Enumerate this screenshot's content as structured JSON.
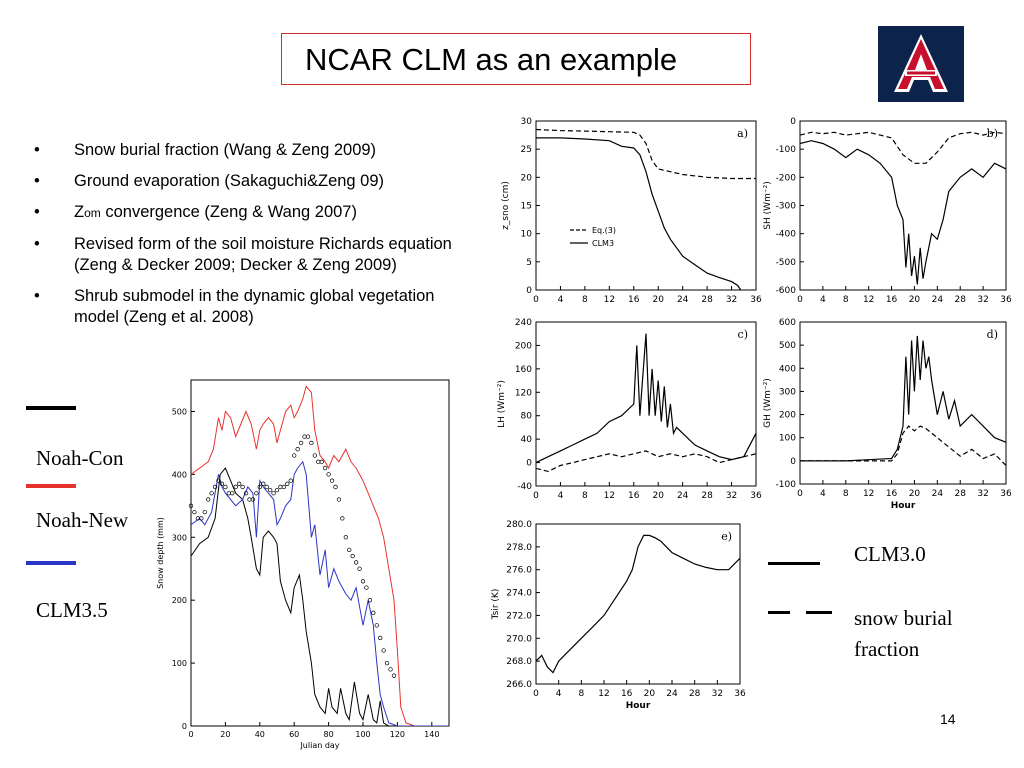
{
  "slide": {
    "title": "NCAR CLM as an example",
    "page_number": "14"
  },
  "logo": {
    "icon": "university-of-arizona-logo",
    "colors": {
      "red": "#c8102e",
      "blue": "#0c234b"
    }
  },
  "bullets": [
    {
      "text": "Snow burial fraction (Wang & Zeng 2009)"
    },
    {
      "text": "Ground evaporation (Sakaguchi&Zeng 09)"
    },
    {
      "pre": "Z",
      "sub": "om",
      "post": " convergence (Zeng & Wang 2007)"
    },
    {
      "text": "Revised form of the soil moisture Richards equation (Zeng & Decker 2009; Decker & Zeng 2009)"
    },
    {
      "text": "Shrub submodel in the dynamic global vegetation model (Zeng et al. 2008)"
    }
  ],
  "bullet_glyph": "•",
  "left_legend": {
    "items": [
      {
        "label": "Noah-Con",
        "color": "#000000"
      },
      {
        "label": "Noah-New",
        "color": "#e8322c"
      },
      {
        "label": "CLM3.5",
        "color": "#2a35c8"
      }
    ]
  },
  "right_legend": {
    "items": [
      {
        "label": "CLM3.0",
        "style": "solid"
      },
      {
        "label": "snow burial fraction",
        "style": "dashed"
      }
    ]
  },
  "chart_data": [
    {
      "id": "snow-depth",
      "type": "line",
      "xlabel": "Julian day",
      "ylabel": "Snow depth (mm)",
      "xlim": [
        0,
        150
      ],
      "ylim": [
        0,
        550
      ],
      "xticks": [
        0,
        20,
        40,
        60,
        80,
        100,
        120,
        140
      ],
      "yticks": [
        0,
        100,
        200,
        300,
        400,
        500
      ],
      "series": [
        {
          "name": "Noah-Con",
          "color": "#000000",
          "x": [
            0,
            5,
            10,
            14,
            17,
            20,
            23,
            26,
            30,
            33,
            35,
            38,
            40,
            42,
            45,
            48,
            50,
            52,
            55,
            58,
            60,
            63,
            65,
            67,
            70,
            72,
            75,
            78,
            80,
            82,
            85,
            87,
            90,
            92,
            95,
            98,
            100,
            103,
            106,
            108,
            110,
            112,
            115,
            120,
            130,
            150
          ],
          "y": [
            270,
            290,
            300,
            330,
            400,
            410,
            390,
            370,
            360,
            330,
            300,
            250,
            240,
            300,
            310,
            300,
            290,
            230,
            200,
            180,
            220,
            240,
            200,
            150,
            100,
            50,
            30,
            20,
            60,
            30,
            20,
            60,
            20,
            10,
            70,
            20,
            10,
            50,
            10,
            5,
            40,
            5,
            0,
            0,
            0,
            0
          ]
        },
        {
          "name": "Noah-New",
          "color": "#e8322c",
          "x": [
            0,
            5,
            10,
            13,
            16,
            18,
            20,
            23,
            26,
            29,
            32,
            35,
            38,
            40,
            42,
            45,
            48,
            50,
            52,
            55,
            58,
            60,
            62,
            65,
            67,
            70,
            72,
            75,
            78,
            80,
            83,
            86,
            90,
            93,
            96,
            100,
            103,
            106,
            109,
            112,
            115,
            118,
            120,
            122,
            125,
            130,
            150
          ],
          "y": [
            400,
            410,
            420,
            440,
            490,
            470,
            500,
            490,
            460,
            480,
            500,
            480,
            440,
            470,
            480,
            490,
            480,
            450,
            470,
            500,
            510,
            490,
            500,
            520,
            540,
            530,
            470,
            430,
            420,
            410,
            430,
            420,
            440,
            420,
            410,
            390,
            370,
            350,
            330,
            300,
            250,
            200,
            120,
            30,
            5,
            0,
            0
          ]
        },
        {
          "name": "CLM3.5",
          "color": "#2a35c8",
          "x": [
            0,
            5,
            8,
            12,
            16,
            18,
            20,
            23,
            26,
            30,
            33,
            36,
            38,
            40,
            42,
            45,
            48,
            50,
            52,
            55,
            58,
            60,
            62,
            65,
            67,
            70,
            72,
            75,
            78,
            80,
            83,
            86,
            90,
            93,
            96,
            100,
            103,
            106,
            108,
            110,
            112,
            115,
            120,
            130,
            150
          ],
          "y": [
            320,
            330,
            320,
            340,
            400,
            380,
            370,
            360,
            350,
            360,
            380,
            370,
            300,
            390,
            380,
            370,
            360,
            320,
            330,
            350,
            360,
            400,
            410,
            420,
            400,
            300,
            320,
            240,
            280,
            220,
            250,
            230,
            210,
            200,
            220,
            160,
            200,
            160,
            100,
            50,
            30,
            5,
            0,
            0,
            0
          ]
        }
      ],
      "scatter": {
        "color": "#000000",
        "x": [
          0,
          2,
          4,
          6,
          8,
          10,
          12,
          14,
          16,
          18,
          20,
          22,
          24,
          26,
          28,
          30,
          32,
          34,
          36,
          38,
          40,
          42,
          44,
          46,
          48,
          50,
          52,
          54,
          56,
          58,
          60,
          62,
          64,
          66,
          68,
          70,
          72,
          74,
          76,
          78,
          80,
          82,
          84,
          86,
          88,
          90,
          92,
          94,
          96,
          98,
          100,
          102,
          104,
          106,
          108,
          110,
          112,
          114,
          116,
          118
        ],
        "y": [
          350,
          340,
          330,
          330,
          340,
          360,
          370,
          380,
          390,
          385,
          380,
          370,
          370,
          380,
          385,
          380,
          370,
          360,
          360,
          370,
          380,
          385,
          380,
          375,
          370,
          375,
          380,
          380,
          385,
          390,
          430,
          440,
          450,
          460,
          460,
          450,
          430,
          420,
          420,
          410,
          400,
          390,
          380,
          360,
          330,
          300,
          280,
          270,
          260,
          250,
          230,
          220,
          200,
          180,
          160,
          140,
          120,
          100,
          90,
          80
        ]
      }
    },
    {
      "id": "panel-a",
      "type": "line",
      "panel_label": "a)",
      "ylabel": "z_sno (cm)",
      "xlim": [
        0,
        36
      ],
      "ylim": [
        0,
        30
      ],
      "xticks": [
        0,
        4,
        8,
        12,
        16,
        20,
        24,
        28,
        32,
        36
      ],
      "yticks": [
        0,
        5,
        10,
        15,
        20,
        25,
        30
      ],
      "legend": [
        "Eq.(3)",
        "CLM3"
      ],
      "series": [
        {
          "name": "Eq.(3)",
          "style": "dashed",
          "x": [
            0,
            4,
            8,
            12,
            16,
            17,
            18,
            19,
            20,
            22,
            24,
            28,
            32,
            36
          ],
          "y": [
            28.5,
            28.3,
            28.2,
            28.1,
            28.0,
            27.5,
            26,
            23,
            21.5,
            21,
            20.5,
            20,
            19.8,
            19.8
          ]
        },
        {
          "name": "CLM3",
          "style": "solid",
          "x": [
            0,
            4,
            8,
            12,
            14,
            16,
            17,
            18,
            19,
            20,
            21,
            22,
            23,
            24,
            26,
            28,
            30,
            32,
            33,
            33.5
          ],
          "y": [
            27,
            27,
            26.8,
            26.5,
            25.5,
            25.2,
            24,
            21,
            17,
            14,
            11,
            9,
            7.5,
            6,
            4.5,
            3,
            2.2,
            1.5,
            0.8,
            0
          ]
        }
      ]
    },
    {
      "id": "panel-b",
      "type": "line",
      "panel_label": "b)",
      "ylabel": "SH (Wm⁻²)",
      "xlim": [
        0,
        36
      ],
      "ylim": [
        -600,
        0
      ],
      "xticks": [
        0,
        4,
        8,
        12,
        16,
        20,
        24,
        28,
        32,
        36
      ],
      "yticks": [
        0,
        -100,
        -200,
        -300,
        -400,
        -500,
        -600
      ],
      "series": [
        {
          "name": "dashed",
          "style": "dashed",
          "x": [
            0,
            2,
            4,
            6,
            8,
            10,
            12,
            14,
            16,
            18,
            20,
            22,
            24,
            26,
            28,
            30,
            32,
            34,
            36
          ],
          "y": [
            -50,
            -40,
            -45,
            -40,
            -50,
            -45,
            -40,
            -50,
            -60,
            -120,
            -150,
            -150,
            -110,
            -60,
            -45,
            -40,
            -50,
            -40,
            -45
          ]
        },
        {
          "name": "solid",
          "style": "solid",
          "x": [
            0,
            2,
            4,
            6,
            8,
            10,
            12,
            14,
            16,
            17,
            18,
            18.5,
            19,
            19.5,
            20,
            20.5,
            21,
            21.5,
            22,
            23,
            24,
            25,
            26,
            28,
            30,
            32,
            34,
            36
          ],
          "y": [
            -80,
            -70,
            -80,
            -100,
            -130,
            -100,
            -120,
            -150,
            -200,
            -300,
            -350,
            -520,
            -400,
            -550,
            -480,
            -580,
            -450,
            -560,
            -500,
            -400,
            -420,
            -350,
            -250,
            -200,
            -170,
            -200,
            -150,
            -170
          ]
        }
      ]
    },
    {
      "id": "panel-c",
      "type": "line",
      "panel_label": "c)",
      "ylabel": "LH (Wm⁻²)",
      "xlim": [
        0,
        36
      ],
      "ylim": [
        -40,
        240
      ],
      "xticks": [
        0,
        4,
        8,
        12,
        16,
        20,
        24,
        28,
        32,
        36
      ],
      "yticks": [
        -40,
        0,
        40,
        80,
        120,
        160,
        200,
        240
      ],
      "series": [
        {
          "name": "dashed",
          "style": "dashed",
          "x": [
            0,
            2,
            4,
            6,
            8,
            10,
            12,
            14,
            16,
            18,
            20,
            22,
            24,
            26,
            28,
            30,
            32,
            34,
            36
          ],
          "y": [
            -10,
            -15,
            -5,
            0,
            5,
            10,
            15,
            10,
            15,
            20,
            10,
            15,
            10,
            15,
            10,
            0,
            5,
            10,
            15
          ]
        },
        {
          "name": "solid",
          "style": "solid",
          "x": [
            0,
            2,
            4,
            6,
            8,
            10,
            12,
            14,
            16,
            16.5,
            17,
            17.5,
            18,
            18.5,
            19,
            19.5,
            20,
            20.5,
            21,
            21.5,
            22,
            22.5,
            23,
            24,
            26,
            28,
            30,
            32,
            34,
            36
          ],
          "y": [
            0,
            10,
            20,
            30,
            40,
            50,
            70,
            80,
            100,
            200,
            80,
            150,
            220,
            80,
            160,
            80,
            140,
            70,
            130,
            60,
            100,
            50,
            60,
            50,
            30,
            20,
            10,
            5,
            10,
            50
          ]
        }
      ]
    },
    {
      "id": "panel-d",
      "type": "line",
      "panel_label": "d)",
      "ylabel": "GH (Wm⁻²)",
      "xlabel": "Hour",
      "xlim": [
        0,
        36
      ],
      "ylim": [
        -100,
        600
      ],
      "xticks": [
        0,
        4,
        8,
        12,
        16,
        20,
        24,
        28,
        32,
        36
      ],
      "yticks": [
        -100,
        0,
        100,
        200,
        300,
        400,
        500,
        600
      ],
      "series": [
        {
          "name": "dashed",
          "style": "dashed",
          "x": [
            0,
            4,
            8,
            12,
            16,
            17,
            18,
            19,
            20,
            21,
            22,
            24,
            26,
            28,
            30,
            32,
            34,
            36
          ],
          "y": [
            0,
            0,
            0,
            0,
            0,
            30,
            120,
            150,
            130,
            150,
            140,
            100,
            60,
            20,
            50,
            10,
            30,
            -20
          ]
        },
        {
          "name": "solid",
          "style": "solid",
          "x": [
            0,
            4,
            8,
            12,
            16,
            17,
            18,
            18.5,
            19,
            19.5,
            20,
            20.5,
            21,
            21.5,
            22,
            22.5,
            23,
            24,
            25,
            26,
            27,
            28,
            30,
            32,
            34,
            36
          ],
          "y": [
            0,
            0,
            0,
            5,
            10,
            50,
            150,
            450,
            200,
            520,
            300,
            540,
            350,
            520,
            400,
            450,
            350,
            200,
            300,
            180,
            260,
            150,
            200,
            150,
            100,
            80
          ]
        }
      ]
    },
    {
      "id": "panel-e",
      "type": "line",
      "panel_label": "e)",
      "ylabel": "Tsir (K)",
      "xlabel": "Hour",
      "xlim": [
        0,
        36
      ],
      "ylim": [
        266,
        280
      ],
      "xticks": [
        0,
        4,
        8,
        12,
        16,
        20,
        24,
        28,
        32,
        36
      ],
      "yticks": [
        266,
        268,
        270,
        272,
        274,
        276,
        278,
        280
      ],
      "ytick_labels": [
        "266.0",
        "268.0",
        "270.0",
        "272.0",
        "274.0",
        "276.0",
        "278.0",
        "280.0"
      ],
      "series": [
        {
          "name": "solid",
          "style": "solid",
          "x": [
            0,
            1,
            2,
            3,
            4,
            5,
            6,
            8,
            10,
            12,
            14,
            16,
            17,
            18,
            19,
            20,
            21,
            22,
            24,
            26,
            28,
            30,
            32,
            34,
            36
          ],
          "y": [
            268,
            268.5,
            267.5,
            267,
            268,
            268.5,
            269,
            270,
            271,
            272,
            273.5,
            275,
            276,
            278,
            279,
            279,
            278.8,
            278.5,
            277.5,
            277,
            276.5,
            276.2,
            276,
            276,
            277
          ]
        }
      ]
    }
  ]
}
